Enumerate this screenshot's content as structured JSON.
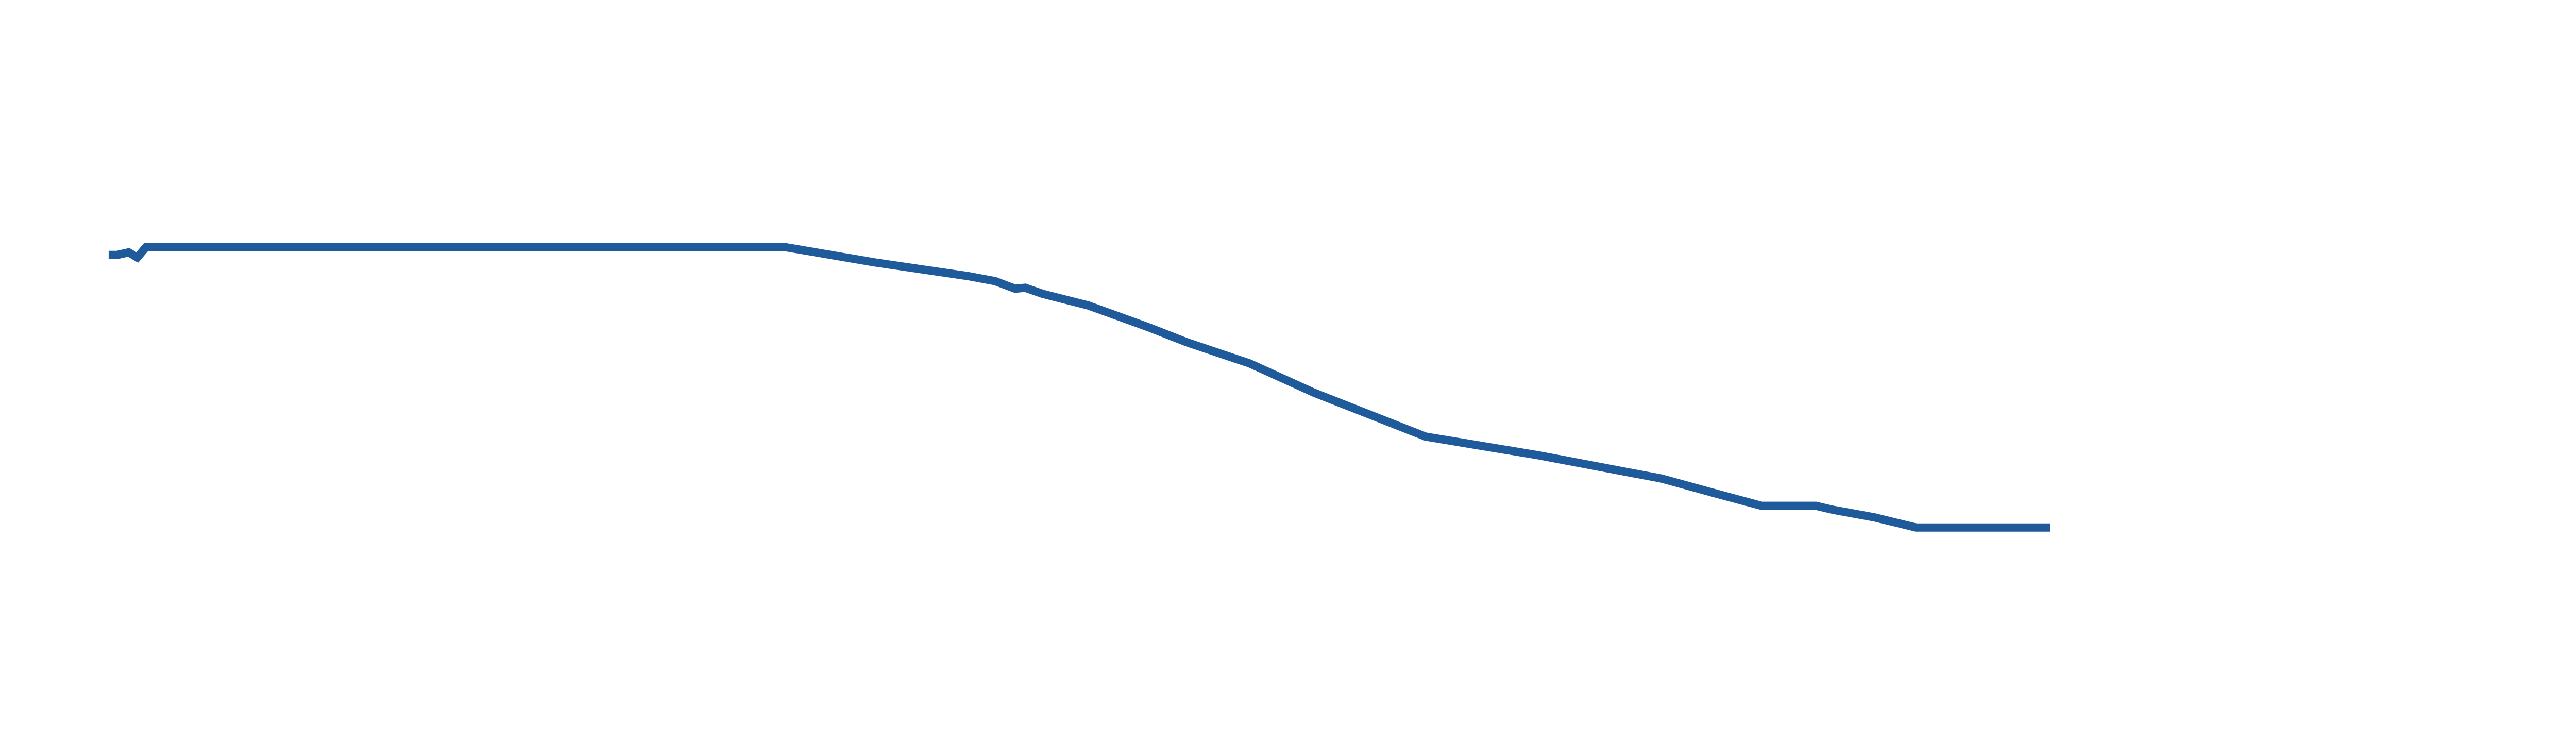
{
  "chart_data": {
    "type": "line",
    "title": "",
    "xlabel": "",
    "ylabel": "",
    "grid": false,
    "legend": "none",
    "line_color": "#1f5a9a",
    "x": [
      0.0,
      0.6,
      1.4,
      2.0,
      2.6,
      47.4,
      53.6,
      60.1,
      62.0,
      63.4,
      64.1,
      65.3,
      68.5,
      72.7,
      75.4,
      79.8,
      84.3,
      92.1,
      100.0,
      108.6,
      112.7,
      115.6,
      116.8,
      119.4,
      120.6,
      123.5,
      126.4,
      128.8,
      135.8
    ],
    "values": [
      -0.15,
      -0.15,
      -0.1,
      -0.2,
      0.0,
      0.0,
      -0.3,
      -0.57,
      -0.67,
      -0.82,
      -0.8,
      -0.92,
      -1.15,
      -1.58,
      -1.88,
      -2.3,
      -2.88,
      -3.75,
      -4.12,
      -4.58,
      -4.9,
      -5.12,
      -5.12,
      -5.12,
      -5.2,
      -5.35,
      -5.55,
      -5.55,
      -5.55
    ],
    "xlim": [
      -7.6,
      174.0
    ],
    "ylim": [
      -9.8,
      4.9
    ]
  }
}
